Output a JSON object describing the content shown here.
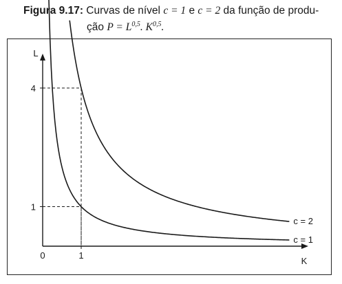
{
  "caption": {
    "label": "Figura 9.17:",
    "text_part1": " Curvas de nível ",
    "c1": "c = 1",
    "connector": " e ",
    "c2": "c = 2",
    "text_part2": " da função de produ-",
    "line2_prefix": "ção ",
    "formula": "P = L^0,5 . K^0,5."
  },
  "chart_data": {
    "type": "line",
    "title": "",
    "xlabel": "K",
    "ylabel": "L",
    "xlim": [
      0,
      7.5
    ],
    "ylim": [
      0,
      6.4
    ],
    "x_ticks": [
      {
        "value": 0,
        "label": "0"
      },
      {
        "value": 1,
        "label": "1"
      }
    ],
    "y_ticks": [
      {
        "value": 1,
        "label": "1"
      },
      {
        "value": 4,
        "label": "4"
      }
    ],
    "series": [
      {
        "name": "c = 1",
        "equation": "L = 1/K",
        "x": [
          0.16,
          0.2,
          0.25,
          0.3,
          0.4,
          0.5,
          0.6,
          0.8,
          1,
          1.25,
          1.5,
          2,
          2.5,
          3,
          3.5,
          4,
          4.5,
          5,
          5.5,
          6,
          6.4
        ],
        "y": [
          6.25,
          5.0,
          4.0,
          3.33,
          2.5,
          2.0,
          1.67,
          1.25,
          1.0,
          0.8,
          0.67,
          0.5,
          0.4,
          0.33,
          0.29,
          0.25,
          0.22,
          0.2,
          0.18,
          0.17,
          0.16
        ]
      },
      {
        "name": "c = 2",
        "equation": "L = 4/K",
        "x": [
          0.7,
          0.8,
          0.9,
          1,
          1.2,
          1.5,
          2,
          2.5,
          3,
          3.5,
          4,
          4.5,
          5,
          5.5,
          6,
          6.4
        ],
        "y": [
          5.71,
          5.0,
          4.44,
          4.0,
          3.33,
          2.67,
          2.0,
          1.6,
          1.33,
          1.14,
          1.0,
          0.89,
          0.8,
          0.73,
          0.67,
          0.63
        ]
      }
    ],
    "guides": [
      {
        "point": [
          1,
          1
        ]
      },
      {
        "point": [
          1,
          4
        ]
      }
    ],
    "grid": false,
    "legend": "inline labels at curve ends (right)"
  }
}
